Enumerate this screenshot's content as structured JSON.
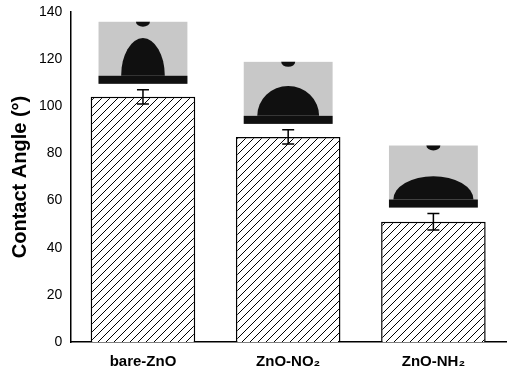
{
  "chart_data": {
    "type": "bar",
    "categories": [
      "bare-ZnO",
      "ZnO-NO₂",
      "ZnO-NH₂"
    ],
    "values": [
      104,
      87,
      51
    ],
    "errors": [
      3,
      3,
      3.5
    ],
    "y_label": "Contact Angle (°)",
    "ylim": [
      0,
      140
    ],
    "yticks": [
      0,
      20,
      40,
      60,
      80,
      100,
      120,
      140
    ],
    "grid": false,
    "color": "#000000"
  }
}
